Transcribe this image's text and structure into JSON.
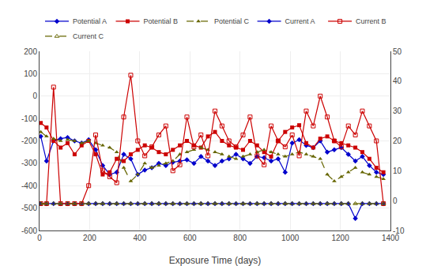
{
  "chart_data": {
    "type": "line",
    "xlabel": "Exposure Time (days)",
    "x": [
      5,
      28,
      56,
      84,
      112,
      140,
      168,
      196,
      224,
      252,
      280,
      308,
      336,
      364,
      392,
      420,
      448,
      476,
      504,
      532,
      560,
      588,
      616,
      644,
      672,
      700,
      728,
      756,
      784,
      812,
      840,
      868,
      896,
      924,
      952,
      980,
      1008,
      1036,
      1064,
      1092,
      1120,
      1148,
      1176,
      1204,
      1232,
      1260,
      1288,
      1316,
      1344,
      1372
    ],
    "xlim": [
      0,
      1400
    ],
    "xticks": [
      0,
      200,
      400,
      600,
      800,
      1000,
      1200,
      1400
    ],
    "ylim": [
      -600,
      200
    ],
    "yticks": [
      -600,
      -500,
      -400,
      -300,
      -200,
      -100,
      0,
      100,
      200
    ],
    "y2lim": [
      -10,
      50
    ],
    "y2ticks": [
      -10,
      0,
      10,
      20,
      30,
      40,
      50
    ],
    "grid": true,
    "legend": "upper right",
    "series": [
      {
        "name": "Potential A",
        "color": "#0000cc",
        "marker": "diamond",
        "line_style": "solid",
        "values": [
          -180,
          -290,
          -200,
          -190,
          -185,
          -200,
          -210,
          -195,
          -240,
          -310,
          -350,
          -340,
          -260,
          -280,
          -350,
          -330,
          -320,
          -300,
          -310,
          -295,
          -290,
          -285,
          -300,
          -270,
          -290,
          -310,
          -290,
          -280,
          -260,
          -280,
          -300,
          -270,
          -275,
          -290,
          -280,
          -340,
          -210,
          -195,
          -220,
          -230,
          -200,
          -250,
          -240,
          -230,
          -260,
          -290,
          -270,
          -310,
          -340,
          -350
        ]
      },
      {
        "name": "Potential B",
        "color": "#cc0000",
        "marker": "square",
        "line_style": "solid",
        "values": [
          -120,
          -140,
          -200,
          -230,
          -210,
          -260,
          -220,
          -200,
          -260,
          -350,
          -340,
          -280,
          -290,
          -260,
          -240,
          -220,
          -230,
          -250,
          -260,
          -240,
          -220,
          -200,
          -220,
          -230,
          -180,
          -160,
          -200,
          -220,
          -230,
          -240,
          -200,
          -220,
          -250,
          -270,
          -200,
          -160,
          -140,
          -130,
          -210,
          -230,
          -190,
          -180,
          -200,
          -210,
          -220,
          -230,
          -250,
          -280,
          -320,
          -340
        ]
      },
      {
        "name": "Potential C",
        "color": "#666600",
        "marker": "triangle-up",
        "line_style": "dash",
        "values": [
          -160,
          -180,
          -190,
          -200,
          -195,
          -200,
          -210,
          -200,
          -210,
          -220,
          -230,
          -250,
          -320,
          -380,
          -350,
          -300,
          -320,
          -310,
          -300,
          -290,
          -260,
          -250,
          -240,
          -230,
          -240,
          -250,
          -260,
          -270,
          -280,
          -270,
          -260,
          -250,
          -240,
          -250,
          -260,
          -270,
          -260,
          -250,
          -260,
          -270,
          -280,
          -350,
          -380,
          -360,
          -340,
          -320,
          -340,
          -350,
          -360,
          -370
        ]
      },
      {
        "name": "Current A",
        "color": "#0000cc",
        "marker": "diamond",
        "line_style": "solid",
        "axis": "y2",
        "values": [
          -1,
          -1,
          -1,
          -1,
          -1,
          -1,
          -1,
          -1,
          -1,
          -1,
          -1,
          -1,
          -1,
          -1,
          -1,
          -1,
          -1,
          -1,
          -1,
          -1,
          -1,
          -1,
          -1,
          -1,
          -1,
          -1,
          -1,
          -1,
          -1,
          -1,
          -1,
          -1,
          -1,
          -1,
          -1,
          -1,
          -1,
          -1,
          -1,
          -1,
          -1,
          -1,
          -1,
          -1,
          -1,
          -6,
          -1,
          -1,
          -1,
          -1
        ]
      },
      {
        "name": "Current B",
        "color": "#cc0000",
        "marker": "square-open",
        "line_style": "solid",
        "axis": "y2",
        "values": [
          -1,
          -1,
          38,
          -1,
          -1,
          -1,
          -1,
          5,
          22,
          10,
          8,
          6,
          28,
          42,
          20,
          15,
          18,
          22,
          25,
          10,
          12,
          28,
          18,
          22,
          15,
          30,
          25,
          20,
          18,
          22,
          28,
          15,
          12,
          25,
          20,
          18,
          22,
          15,
          30,
          25,
          35,
          28,
          20,
          18,
          25,
          22,
          30,
          25,
          20,
          -1
        ]
      },
      {
        "name": "Current C",
        "color": "#666600",
        "marker": "triangle-up-open",
        "line_style": "dash",
        "axis": "y2",
        "values": [
          -1,
          -1,
          -1,
          -1,
          -1,
          -1,
          -1,
          -1,
          -1,
          -1,
          -1,
          -1,
          -1,
          -1,
          -1,
          -1,
          -1,
          -1,
          -1,
          -1,
          -1,
          -1,
          -1,
          -1,
          -1,
          -1,
          -1,
          -1,
          -1,
          -1,
          -1,
          -1,
          -1,
          -1,
          -1,
          -1,
          -1,
          -1,
          -1,
          -1,
          -1,
          -1,
          -1,
          -1,
          -1,
          -1,
          -1,
          -1,
          -1,
          -1
        ]
      }
    ]
  }
}
